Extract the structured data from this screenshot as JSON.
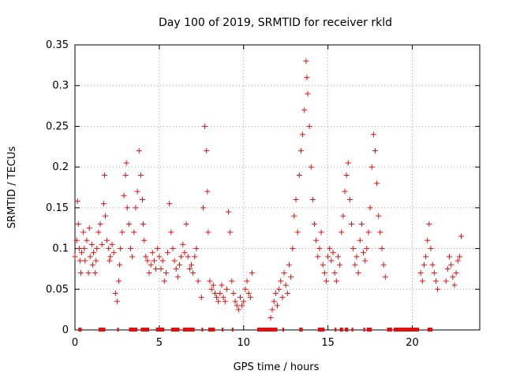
{
  "chart_data": {
    "type": "scatter",
    "title": "Day 100 of 2019, SRMTID for receiver rkld",
    "xlabel": "GPS time / hours",
    "ylabel": "SRMTID / TECUs",
    "xlim": [
      0,
      24
    ],
    "ylim": [
      0,
      0.35
    ],
    "xticks": [
      0,
      5,
      10,
      15,
      20
    ],
    "xtick_labels": [
      "0",
      "5",
      "10",
      "15",
      "20"
    ],
    "yticks": [
      0,
      0.05,
      0.1,
      0.15,
      0.2,
      0.25,
      0.3,
      0.35
    ],
    "ytick_labels": [
      "0",
      "0.05",
      "0.1",
      "0.15",
      "0.2",
      "0.25",
      "0.3",
      "0.35"
    ],
    "grid": true,
    "marker": "+",
    "color": "#e01010",
    "series": [
      {
        "name": "SRMTID",
        "x": [
          0.0,
          0.1,
          0.15,
          0.2,
          0.25,
          0.3,
          0.35,
          0.4,
          0.5,
          0.55,
          0.6,
          0.7,
          0.8,
          0.85,
          0.9,
          1.0,
          1.05,
          1.1,
          1.2,
          1.25,
          1.3,
          1.4,
          1.5,
          1.6,
          1.7,
          1.75,
          1.8,
          1.9,
          2.0,
          2.05,
          2.1,
          2.2,
          2.3,
          2.4,
          2.5,
          2.6,
          2.65,
          2.7,
          2.8,
          2.9,
          3.0,
          3.05,
          3.1,
          3.2,
          3.3,
          3.4,
          3.5,
          3.6,
          3.7,
          3.8,
          3.9,
          4.0,
          4.05,
          4.1,
          4.2,
          4.3,
          4.4,
          4.5,
          4.6,
          4.7,
          4.8,
          4.9,
          5.0,
          5.1,
          5.2,
          5.3,
          5.4,
          5.5,
          5.6,
          5.7,
          5.8,
          5.9,
          6.0,
          6.1,
          6.2,
          6.3,
          6.4,
          6.5,
          6.6,
          6.7,
          6.8,
          6.9,
          7.0,
          7.1,
          7.2,
          7.3,
          7.5,
          7.6,
          7.7,
          7.8,
          7.85,
          7.9,
          8.0,
          8.1,
          8.2,
          8.3,
          8.4,
          8.5,
          8.6,
          8.7,
          8.8,
          8.9,
          9.0,
          9.1,
          9.2,
          9.3,
          9.4,
          9.5,
          9.6,
          9.7,
          9.8,
          9.9,
          10.0,
          10.1,
          10.2,
          10.3,
          10.4,
          10.5,
          11.6,
          11.7,
          11.8,
          11.9,
          12.0,
          12.1,
          12.2,
          12.3,
          12.4,
          12.5,
          12.6,
          12.7,
          12.8,
          12.9,
          13.0,
          13.1,
          13.2,
          13.3,
          13.4,
          13.5,
          13.6,
          13.7,
          13.75,
          13.8,
          13.9,
          14.0,
          14.1,
          14.2,
          14.3,
          14.4,
          14.5,
          14.6,
          14.7,
          14.8,
          14.9,
          15.0,
          15.1,
          15.2,
          15.3,
          15.4,
          15.5,
          15.6,
          15.7,
          15.8,
          15.9,
          16.0,
          16.1,
          16.2,
          16.3,
          16.4,
          16.5,
          16.6,
          16.7,
          16.8,
          16.9,
          17.0,
          17.1,
          17.2,
          17.3,
          17.4,
          17.5,
          17.6,
          17.7,
          17.8,
          17.9,
          18.0,
          18.1,
          18.2,
          18.3,
          18.4,
          20.5,
          20.6,
          20.7,
          20.8,
          20.9,
          21.0,
          21.1,
          21.2,
          21.3,
          21.4,
          21.5,
          22.0,
          22.1,
          22.2,
          22.3,
          22.4,
          22.5,
          22.6,
          22.7,
          22.8,
          22.9
        ],
        "y": [
          0.09,
          0.11,
          0.158,
          0.13,
          0.1,
          0.085,
          0.07,
          0.095,
          0.12,
          0.1,
          0.085,
          0.11,
          0.07,
          0.125,
          0.09,
          0.105,
          0.08,
          0.095,
          0.07,
          0.085,
          0.1,
          0.12,
          0.13,
          0.105,
          0.155,
          0.19,
          0.14,
          0.11,
          0.1,
          0.085,
          0.09,
          0.105,
          0.095,
          0.045,
          0.035,
          0.06,
          0.08,
          0.1,
          0.12,
          0.165,
          0.19,
          0.205,
          0.15,
          0.13,
          0.1,
          0.09,
          0.12,
          0.15,
          0.17,
          0.22,
          0.19,
          0.16,
          0.13,
          0.11,
          0.09,
          0.085,
          0.07,
          0.08,
          0.095,
          0.085,
          0.075,
          0.1,
          0.09,
          0.075,
          0.085,
          0.06,
          0.07,
          0.095,
          0.155,
          0.12,
          0.1,
          0.085,
          0.075,
          0.065,
          0.08,
          0.09,
          0.105,
          0.095,
          0.13,
          0.09,
          0.075,
          0.08,
          0.07,
          0.09,
          0.1,
          0.06,
          0.04,
          0.15,
          0.25,
          0.22,
          0.17,
          0.12,
          0.06,
          0.05,
          0.055,
          0.045,
          0.04,
          0.035,
          0.045,
          0.055,
          0.04,
          0.035,
          0.05,
          0.145,
          0.12,
          0.06,
          0.045,
          0.035,
          0.03,
          0.025,
          0.04,
          0.03,
          0.035,
          0.05,
          0.06,
          0.045,
          0.04,
          0.07,
          0.015,
          0.025,
          0.035,
          0.045,
          0.03,
          0.05,
          0.06,
          0.04,
          0.07,
          0.055,
          0.045,
          0.08,
          0.065,
          0.1,
          0.14,
          0.16,
          0.12,
          0.19,
          0.22,
          0.24,
          0.27,
          0.33,
          0.31,
          0.29,
          0.25,
          0.2,
          0.16,
          0.13,
          0.11,
          0.09,
          0.1,
          0.12,
          0.08,
          0.07,
          0.06,
          0.09,
          0.1,
          0.085,
          0.095,
          0.07,
          0.06,
          0.09,
          0.08,
          0.12,
          0.14,
          0.17,
          0.19,
          0.205,
          0.16,
          0.13,
          0.1,
          0.08,
          0.09,
          0.07,
          0.11,
          0.13,
          0.095,
          0.085,
          0.1,
          0.12,
          0.15,
          0.2,
          0.24,
          0.22,
          0.18,
          0.14,
          0.12,
          0.1,
          0.08,
          0.065,
          0.07,
          0.06,
          0.08,
          0.09,
          0.11,
          0.13,
          0.1,
          0.08,
          0.07,
          0.06,
          0.05,
          0.06,
          0.075,
          0.09,
          0.08,
          0.065,
          0.055,
          0.07,
          0.085,
          0.09,
          0.115
        ]
      }
    ],
    "gap_ranges": [
      [
        0.2,
        0.4
      ],
      [
        1.4,
        1.8
      ],
      [
        2.5,
        2.6
      ],
      [
        3.2,
        3.7
      ],
      [
        3.9,
        4.4
      ],
      [
        4.8,
        5.3
      ],
      [
        5.7,
        6.2
      ],
      [
        6.4,
        7.1
      ],
      [
        7.5,
        7.6
      ],
      [
        7.9,
        8.3
      ],
      [
        8.7,
        8.8
      ],
      [
        9.3,
        9.4
      ],
      [
        10.8,
        12.0
      ],
      [
        12.3,
        12.4
      ],
      [
        13.3,
        13.5
      ],
      [
        14.4,
        14.8
      ],
      [
        15.4,
        15.5
      ],
      [
        15.7,
        15.9
      ],
      [
        16.0,
        16.2
      ],
      [
        16.4,
        16.5
      ],
      [
        17.1,
        17.2
      ],
      [
        17.3,
        17.6
      ],
      [
        18.5,
        18.8
      ],
      [
        18.9,
        20.4
      ],
      [
        20.9,
        21.2
      ]
    ]
  }
}
